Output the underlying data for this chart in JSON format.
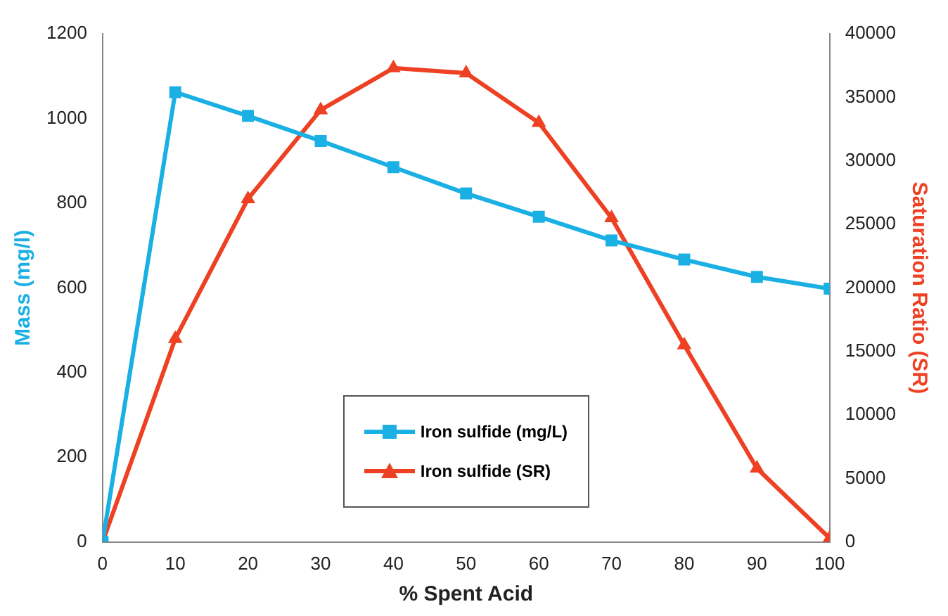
{
  "chart_data": {
    "type": "line",
    "xlabel": "% Spent Acid",
    "ylabel": "Mass (mg/l)",
    "y2label": "Saturation Ratio (SR)",
    "x": [
      0,
      10,
      20,
      30,
      40,
      50,
      60,
      70,
      80,
      90,
      100
    ],
    "xlim": [
      0,
      100
    ],
    "xticks": [
      0,
      10,
      20,
      30,
      40,
      50,
      60,
      70,
      80,
      90,
      100
    ],
    "ylim": [
      0,
      1200
    ],
    "yticks": [
      0,
      200,
      400,
      600,
      800,
      1000,
      1200
    ],
    "y2lim": [
      0,
      40000
    ],
    "y2ticks": [
      0,
      5000,
      10000,
      15000,
      20000,
      25000,
      30000,
      35000,
      40000
    ],
    "series": [
      {
        "name": "Iron sulfide (mg/L)",
        "color": "#1ab0e4",
        "marker": "square",
        "values": [
          0,
          1062,
          1006,
          947,
          885,
          823,
          768,
          712,
          667,
          626,
          598
        ]
      },
      {
        "name": "Iron sulfide (SR)",
        "color": "#ee4123",
        "marker": "triangle",
        "axis": "y2",
        "values": [
          0,
          16000,
          27000,
          34000,
          37300,
          36900,
          33000,
          25500,
          15500,
          5800,
          300
        ]
      }
    ],
    "grid": false,
    "legend": "bottom",
    "line_style": "solid"
  }
}
